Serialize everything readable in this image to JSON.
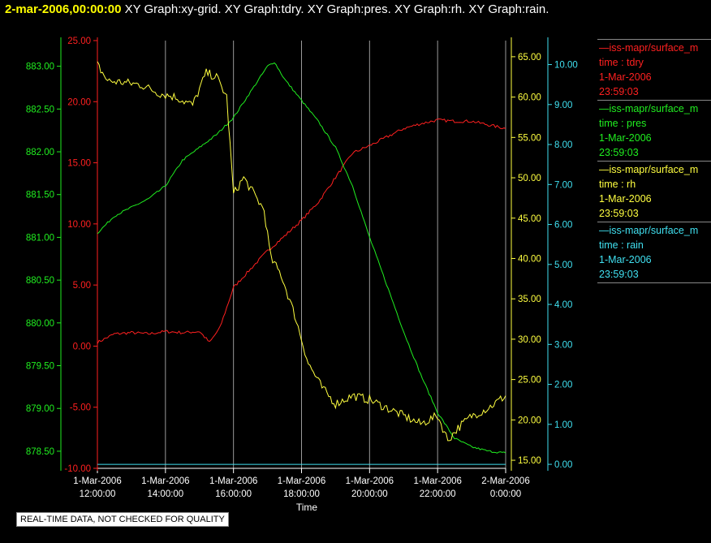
{
  "header": {
    "time": "2-mar-2006,00:00:00",
    "graphs": "XY Graph:xy-grid.  XY Graph:tdry.  XY Graph:pres.  XY Graph:rh.  XY Graph:rain."
  },
  "legend": [
    {
      "name": "—iss-mapr/surface_m",
      "detail": "time : tdry",
      "date": "1-Mar-2006",
      "time": "23:59:03",
      "color": "#ff2020"
    },
    {
      "name": "—iss-mapr/surface_m",
      "detail": "time : pres",
      "date": "1-Mar-2006",
      "time": "23:59:03",
      "color": "#20ee20"
    },
    {
      "name": "—iss-mapr/surface_m",
      "detail": "time : rh",
      "date": "1-Mar-2006",
      "time": "23:59:03",
      "color": "#ffff40"
    },
    {
      "name": "—iss-mapr/surface_m",
      "detail": "time : rain",
      "date": "1-Mar-2006",
      "time": "23:59:03",
      "color": "#40e0f0"
    }
  ],
  "quality_note": "REAL-TIME DATA, NOT CHECKED FOR QUALITY",
  "chart_data": {
    "type": "line",
    "xlabel": "Time",
    "x_range_hours": [
      12,
      24
    ],
    "x_ticks": [
      {
        "date": "1-Mar-2006",
        "time": "12:00:00",
        "hour": 12
      },
      {
        "date": "1-Mar-2006",
        "time": "14:00:00",
        "hour": 14
      },
      {
        "date": "1-Mar-2006",
        "time": "16:00:00",
        "hour": 16
      },
      {
        "date": "1-Mar-2006",
        "time": "18:00:00",
        "hour": 18
      },
      {
        "date": "1-Mar-2006",
        "time": "20:00:00",
        "hour": 20
      },
      {
        "date": "1-Mar-2006",
        "time": "22:00:00",
        "hour": 22
      },
      {
        "date": "2-Mar-2006",
        "time": "0:00:00",
        "hour": 24
      }
    ],
    "grid": "vertical",
    "axes": [
      {
        "id": "pres",
        "color": "#20ee20",
        "ylim": [
          878.3,
          883.3
        ],
        "ticks": [
          "878.50",
          "879.00",
          "879.50",
          "880.00",
          "880.50",
          "881.00",
          "881.50",
          "882.00",
          "882.50",
          "883.00"
        ]
      },
      {
        "id": "tdry",
        "color": "#ff2020",
        "ylim": [
          -10,
          25
        ],
        "ticks": [
          "-10.00",
          "-5.00",
          "0.00",
          "5.00",
          "10.00",
          "15.00",
          "20.00",
          "25.00"
        ]
      },
      {
        "id": "rh",
        "color": "#ffff40",
        "ylim": [
          14,
          67
        ],
        "ticks": [
          "15.00",
          "20.00",
          "25.00",
          "30.00",
          "35.00",
          "40.00",
          "45.00",
          "50.00",
          "55.00",
          "60.00",
          "65.00"
        ]
      },
      {
        "id": "rain",
        "color": "#40e0f0",
        "ylim": [
          -0.1,
          10.6
        ],
        "ticks": [
          "0.00",
          "1.00",
          "2.00",
          "3.00",
          "4.00",
          "5.00",
          "6.00",
          "7.00",
          "8.00",
          "9.00",
          "10.00"
        ]
      }
    ],
    "series": [
      {
        "name": "tdry",
        "axis": "tdry",
        "color": "#ff2020",
        "x": [
          12.0,
          12.5,
          13.0,
          13.5,
          14.0,
          14.5,
          15.0,
          15.3,
          15.6,
          16.0,
          16.5,
          17.0,
          17.5,
          18.0,
          18.5,
          19.0,
          19.5,
          20.0,
          20.5,
          21.0,
          21.5,
          22.0,
          22.5,
          23.0,
          23.5,
          24.0
        ],
        "y": [
          0.3,
          1.0,
          1.1,
          1.0,
          1.2,
          1.1,
          1.2,
          0.3,
          1.5,
          4.8,
          6.3,
          7.8,
          9.0,
          10.3,
          11.8,
          13.8,
          15.8,
          16.4,
          17.1,
          17.8,
          18.2,
          18.5,
          18.4,
          18.4,
          18.1,
          17.8
        ]
      },
      {
        "name": "pres",
        "axis": "pres",
        "color": "#20ee20",
        "x": [
          12.0,
          12.5,
          13.0,
          13.5,
          14.0,
          14.5,
          15.0,
          15.5,
          16.0,
          16.5,
          17.0,
          17.2,
          17.5,
          18.0,
          18.5,
          19.0,
          19.5,
          20.0,
          20.5,
          21.0,
          21.5,
          22.0,
          22.5,
          23.0,
          23.5,
          24.0
        ],
        "y": [
          881.05,
          881.25,
          881.35,
          881.45,
          881.6,
          881.9,
          882.05,
          882.2,
          882.4,
          882.7,
          883.0,
          883.05,
          882.85,
          882.6,
          882.35,
          882.05,
          881.6,
          881.0,
          880.45,
          879.9,
          879.4,
          878.95,
          878.65,
          878.55,
          878.5,
          878.48
        ]
      },
      {
        "name": "rh",
        "axis": "rh",
        "color": "#ffff40",
        "x": [
          12.0,
          12.3,
          12.8,
          13.3,
          13.8,
          14.3,
          14.8,
          15.2,
          15.5,
          15.8,
          16.0,
          16.3,
          16.6,
          16.9,
          17.1,
          17.4,
          17.8,
          18.2,
          18.6,
          19.0,
          19.5,
          20.0,
          20.5,
          21.0,
          21.5,
          22.0,
          22.3,
          22.6,
          23.0,
          23.5,
          24.0
        ],
        "y": [
          64.0,
          62.0,
          61.8,
          61.5,
          60.5,
          60.0,
          59.0,
          63.0,
          62.5,
          60.0,
          48.0,
          50.0,
          48.0,
          46.0,
          40.0,
          38.0,
          33.0,
          27.0,
          24.0,
          22.0,
          23.0,
          22.5,
          21.5,
          20.5,
          19.5,
          20.5,
          17.5,
          19.0,
          20.5,
          21.5,
          23.0
        ]
      },
      {
        "name": "rain",
        "axis": "rain",
        "color": "#40e0f0",
        "x": [
          12,
          24
        ],
        "y": [
          0.0,
          0.0
        ]
      }
    ]
  }
}
